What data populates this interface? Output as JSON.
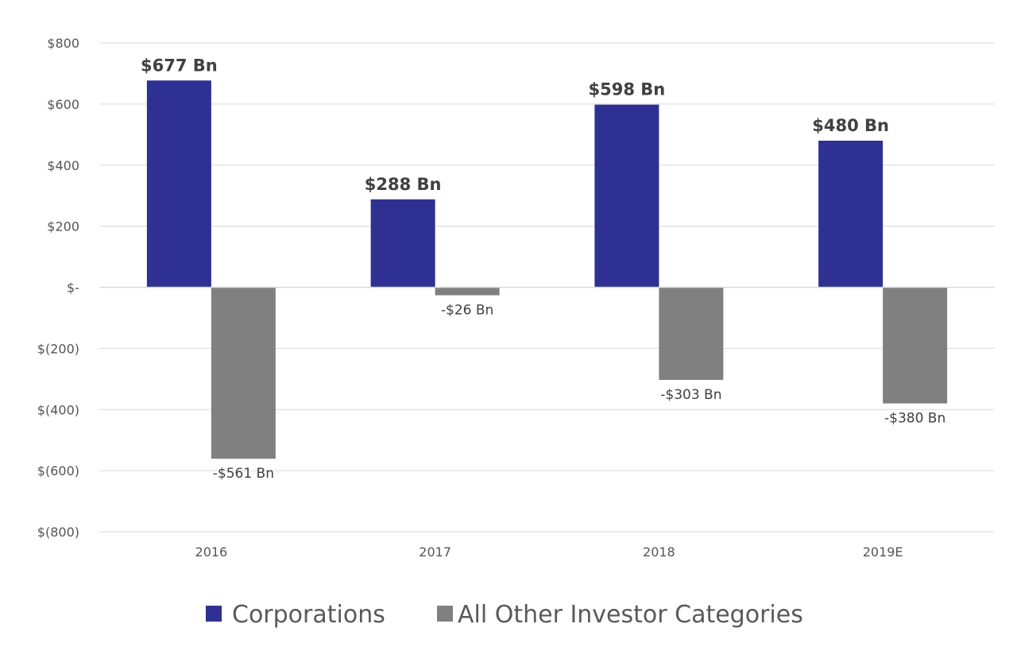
{
  "chart_data": {
    "type": "bar",
    "categories": [
      "2016",
      "2017",
      "2018",
      "2019E"
    ],
    "series": [
      {
        "name": "Corporations",
        "color": "#2e3092",
        "values": [
          677,
          288,
          598,
          480
        ],
        "labels": [
          "$677 Bn",
          "$288 Bn",
          "$598 Bn",
          "$480 Bn"
        ]
      },
      {
        "name": "All Other Investor Categories",
        "color": "#808080",
        "values": [
          -561,
          -26,
          -303,
          -380
        ],
        "labels": [
          "-$561 Bn",
          "-$26 Bn",
          "-$303 Bn",
          "-$380 Bn"
        ]
      }
    ],
    "y_ticks": [
      800,
      600,
      400,
      200,
      0,
      -200,
      -400,
      -600,
      -800
    ],
    "y_tick_labels": [
      "$800",
      "$600",
      "$400",
      "$200",
      "$-",
      "$(200)",
      "$(400)",
      "$(600)",
      "$(800)"
    ],
    "ylim": [
      -800,
      800
    ],
    "grid": true,
    "legend_position": "bottom"
  }
}
